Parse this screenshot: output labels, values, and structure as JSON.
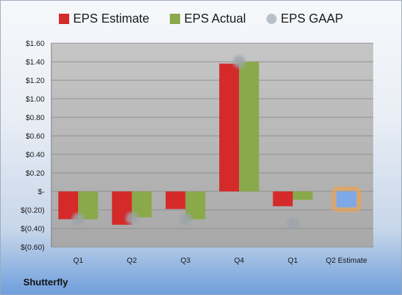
{
  "legend": [
    {
      "label": "EPS Estimate",
      "color": "#d42a2a",
      "shape": "square"
    },
    {
      "label": "EPS Actual",
      "color": "#8aa94a",
      "shape": "square"
    },
    {
      "label": "EPS GAAP",
      "color": "#b9c0c8",
      "shape": "circle"
    }
  ],
  "company": "Shutterfly",
  "chart_data": {
    "type": "bar",
    "categories": [
      "Q1",
      "Q2",
      "Q3",
      "Q4",
      "Q1",
      "Q2 Estimate"
    ],
    "series": [
      {
        "name": "EPS Estimate",
        "color": "#d42a2a",
        "values": [
          -0.3,
          -0.36,
          -0.19,
          1.38,
          -0.16,
          null
        ]
      },
      {
        "name": "EPS Actual",
        "color": "#8aa94a",
        "values": [
          -0.3,
          -0.28,
          -0.3,
          1.4,
          -0.09,
          null
        ]
      },
      {
        "name": "EPS GAAP",
        "type": "scatter",
        "color": "#9ea4ab",
        "values": [
          -0.3,
          -0.29,
          -0.3,
          1.4,
          -0.35,
          null
        ]
      },
      {
        "name": "Q2 Estimate",
        "color": "#7fa9e6",
        "highlight": "#f0a050",
        "values": [
          null,
          null,
          null,
          null,
          null,
          -0.17
        ]
      }
    ],
    "y_ticks": [
      "$1.60",
      "$1.40",
      "$1.20",
      "$1.00",
      "$0.80",
      "$0.60",
      "$0.40",
      "$0.20",
      "$-",
      "$(0.20)",
      "$(0.40)",
      "$(0.60)"
    ],
    "y_tick_values": [
      1.6,
      1.4,
      1.2,
      1.0,
      0.8,
      0.6,
      0.4,
      0.2,
      0,
      -0.2,
      -0.4,
      -0.6
    ],
    "ylim": [
      -0.6,
      1.6
    ],
    "grid": true,
    "legend_position": "top"
  }
}
